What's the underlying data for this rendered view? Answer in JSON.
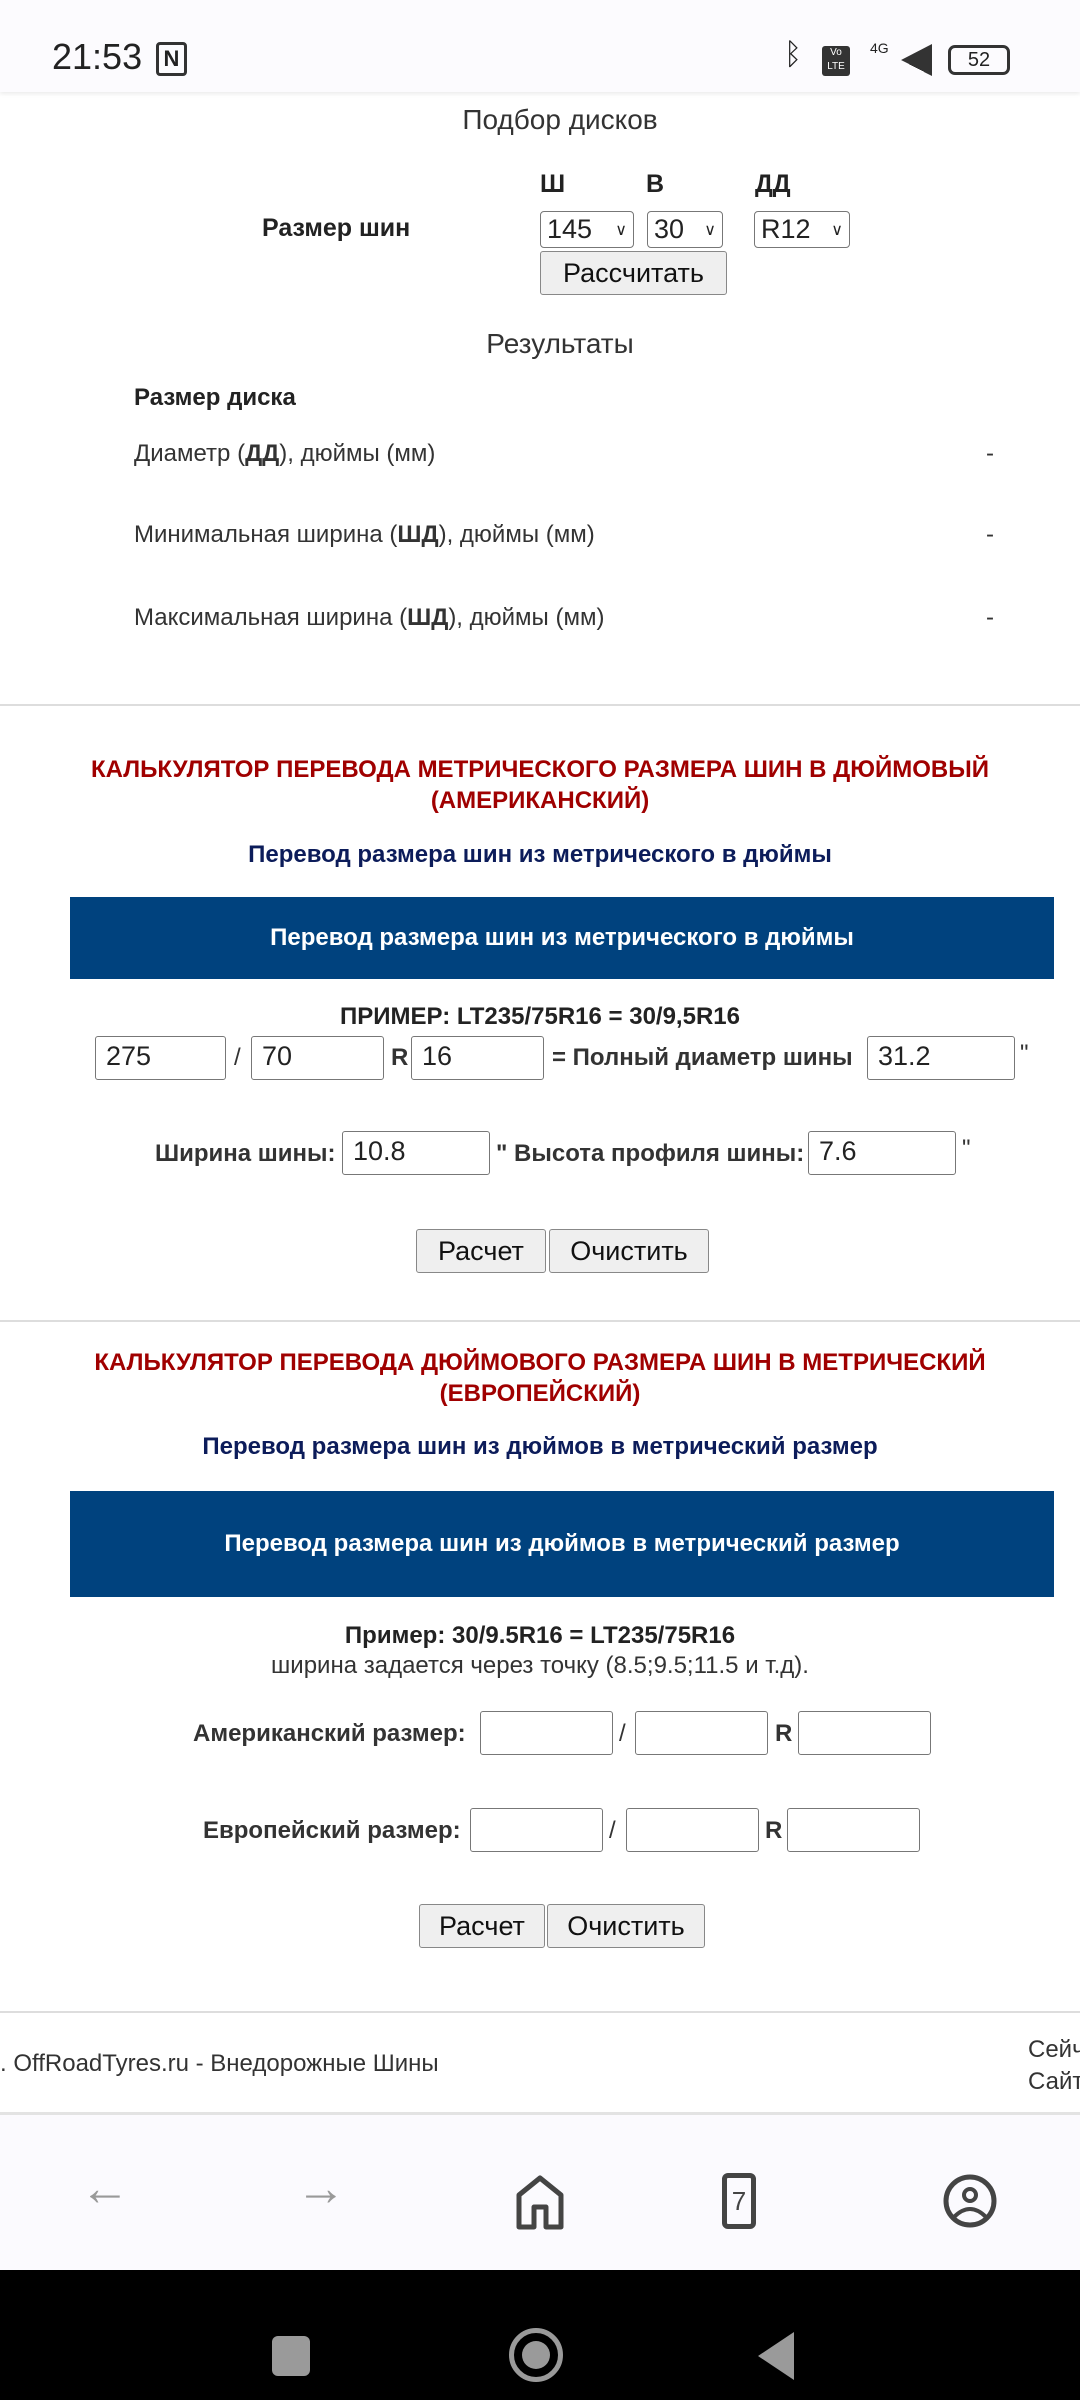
{
  "status_bar": {
    "time": "21:53",
    "battery": "52",
    "network": "4G"
  },
  "wheel_picker": {
    "title": "Подбор дисков",
    "label": "Размер шин",
    "col_w": "Ш",
    "col_h": "В",
    "col_d": "ДД",
    "width": "145",
    "height": "30",
    "diameter": "R12",
    "calc": "Рассчитать"
  },
  "results": {
    "title": "Результаты",
    "subtitle": "Размер диска",
    "rows": [
      {
        "pre": "Диаметр (",
        "bold": "ДД",
        "post": "), дюймы (мм)",
        "value": "-"
      },
      {
        "pre": "Минимальная ширина (",
        "bold": "ШД",
        "post": "), дюймы (мм)",
        "value": "-"
      },
      {
        "pre": "Максимальная ширина (",
        "bold": "ШД",
        "post": "), дюймы (мм)",
        "value": "-"
      }
    ]
  },
  "metric_to_inch": {
    "title1": "КАЛЬКУЛЯТОР ПЕРЕВОДА МЕТРИЧЕСКОГО РАЗМЕРА ШИН В ДЮЙМОВЫЙ",
    "title2": "(АМЕРИКАНСКИЙ)",
    "subtitle": "Перевод размера шин из метрического в дюймы",
    "banner": "Перевод размера шин из метрического в дюймы",
    "example": "ПРИМЕР: LT235/75R16 = 30/9,5R16",
    "width": "275",
    "slash": "/",
    "ratio": "70",
    "r": "R",
    "rim": "16",
    "full_label": "= Полный диаметр шины",
    "full_value": "31.2",
    "inch": "\"",
    "width_label": "Ширина шины:",
    "width_value": "10.8",
    "profile_label": "\" Высота профиля шины:",
    "profile_value": "7.6",
    "calc": "Расчет",
    "clear": "Очистить"
  },
  "inch_to_metric": {
    "title1": "КАЛЬКУЛЯТОР ПЕРЕВОДА ДЮЙМОВОГО РАЗМЕРА ШИН В МЕТРИЧЕСКИЙ",
    "title2": "(ЕВРОПЕЙСКИЙ)",
    "subtitle": "Перевод размера шин из дюймов в метрический размер",
    "banner": "Перевод размера шин из дюймов в метрический размер",
    "example": "Пример: 30/9.5R16 = LT235/75R16",
    "hint": "ширина задается через точку (8.5;9.5;11.5 и т.д).",
    "american_label": "Американский размер:",
    "european_label": "Европейский размер:",
    "slash": "/",
    "r": "R",
    "calc": "Расчет",
    "clear": "Очистить"
  },
  "footer": {
    "left": ". OffRoadTyres.ru - Внедорожные Шины",
    "right1": "Сейч",
    "right2": "Сайт"
  },
  "browser_nav": {
    "tabs_count": "7"
  }
}
